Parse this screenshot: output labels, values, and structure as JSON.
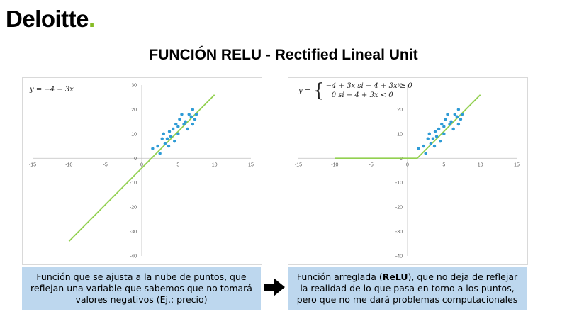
{
  "logo": {
    "text": "Deloitte",
    "dot": "."
  },
  "title": "FUNCIÓN RELU - Rectified Lineal Unit",
  "left_formula": "y = −4 + 3x",
  "right_formula": {
    "lhs": "y =",
    "row1": "−4 + 3x   si  − 4 + 3x ≥ 0",
    "row2": "0    si  − 4 + 3x < 0"
  },
  "left_text": "Función que se ajusta a la nube de puntos, que reflejan una variable que sabemos que no tomará valores negativos (Ej.: precio)",
  "right_text_before": "Función arreglada (",
  "right_text_bold": "ReLU",
  "right_text_after": "), que no deja de reflejar la realidad de lo que pasa en torno a los puntos, pero que no me dará problemas computacionales",
  "colors": {
    "line": "#92d050",
    "points": "#2e9bd6",
    "box": "#bdd7ee",
    "brand": "#86bc25"
  },
  "chart_data": [
    {
      "type": "scatter",
      "xlim": [
        -15,
        15
      ],
      "ylim": [
        -40,
        30
      ],
      "xticks": [
        -15,
        -10,
        -5,
        0,
        5,
        10,
        15
      ],
      "yticks": [
        -40,
        -30,
        -20,
        -10,
        0,
        10,
        20,
        30
      ],
      "line": {
        "x_start": -10,
        "x_end": 10
      },
      "points": [
        [
          1.5,
          4
        ],
        [
          2.2,
          5
        ],
        [
          2.5,
          2
        ],
        [
          2.8,
          8
        ],
        [
          3,
          10
        ],
        [
          3.2,
          6
        ],
        [
          3.5,
          8
        ],
        [
          3.7,
          5
        ],
        [
          3.8,
          11
        ],
        [
          4,
          9
        ],
        [
          4.3,
          12
        ],
        [
          4.5,
          7
        ],
        [
          4.7,
          14
        ],
        [
          5,
          13
        ],
        [
          5,
          10
        ],
        [
          5.2,
          16
        ],
        [
          5.5,
          18
        ],
        [
          5.8,
          14
        ],
        [
          6,
          15
        ],
        [
          6.3,
          12
        ],
        [
          6.5,
          18
        ],
        [
          6.8,
          17
        ],
        [
          7,
          20
        ],
        [
          7,
          14
        ],
        [
          7.3,
          16
        ],
        [
          7.5,
          18
        ]
      ]
    },
    {
      "type": "scatter",
      "xlim": [
        -15,
        15
      ],
      "ylim": [
        -40,
        30
      ],
      "xticks": [
        -15,
        -10,
        -5,
        0,
        5,
        10,
        15
      ],
      "yticks": [
        -40,
        -30,
        -20,
        -10,
        0,
        10,
        20,
        30
      ],
      "line": {
        "x_start": -10,
        "x_end": 10,
        "relu": true
      },
      "points": [
        [
          1.5,
          4
        ],
        [
          2.2,
          5
        ],
        [
          2.5,
          2
        ],
        [
          2.8,
          8
        ],
        [
          3,
          10
        ],
        [
          3.2,
          6
        ],
        [
          3.5,
          8
        ],
        [
          3.7,
          5
        ],
        [
          3.8,
          11
        ],
        [
          4,
          9
        ],
        [
          4.3,
          12
        ],
        [
          4.5,
          7
        ],
        [
          4.7,
          14
        ],
        [
          5,
          13
        ],
        [
          5,
          10
        ],
        [
          5.2,
          16
        ],
        [
          5.5,
          18
        ],
        [
          5.8,
          14
        ],
        [
          6,
          15
        ],
        [
          6.3,
          12
        ],
        [
          6.5,
          18
        ],
        [
          6.8,
          17
        ],
        [
          7,
          20
        ],
        [
          7,
          14
        ],
        [
          7.3,
          16
        ],
        [
          7.5,
          18
        ]
      ]
    }
  ]
}
